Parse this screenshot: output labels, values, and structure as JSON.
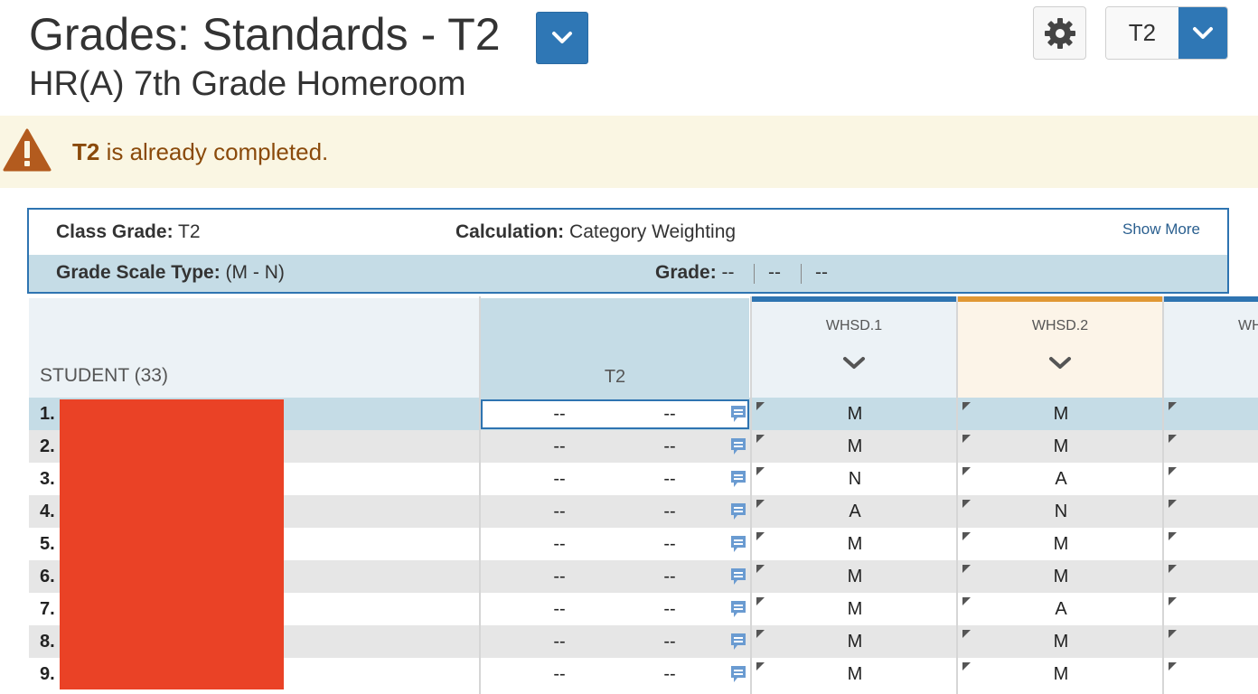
{
  "header": {
    "title": "Grades: Standards - T2",
    "subtitle": "HR(A) 7th Grade Homeroom",
    "term_value": "T2"
  },
  "alert": {
    "term": "T2",
    "message": " is already completed."
  },
  "summary": {
    "class_grade_label": "Class Grade:",
    "class_grade_value": "T2",
    "calculation_label": "Calculation:",
    "calculation_value": "Category Weighting",
    "show_more": "Show More",
    "grade_scale_label": "Grade Scale Type:",
    "grade_scale_value": "(M - N)",
    "grade_label": "Grade:",
    "grade_values": [
      "--",
      "--",
      "--"
    ]
  },
  "table": {
    "student_header": "STUDENT (33)",
    "term_header": "T2",
    "standards": [
      "WHSD.1",
      "WHSD.2",
      "WH"
    ],
    "rows": [
      {
        "num": "1.",
        "c1": "--",
        "c2": "--",
        "g1": "M",
        "g2": "M"
      },
      {
        "num": "2.",
        "c1": "--",
        "c2": "--",
        "g1": "M",
        "g2": "M"
      },
      {
        "num": "3.",
        "c1": "--",
        "c2": "--",
        "g1": "N",
        "g2": "A"
      },
      {
        "num": "4.",
        "c1": "--",
        "c2": "--",
        "g1": "A",
        "g2": "N"
      },
      {
        "num": "5.",
        "c1": "--",
        "c2": "--",
        "g1": "M",
        "g2": "M"
      },
      {
        "num": "6.",
        "c1": "--",
        "c2": "--",
        "g1": "M",
        "g2": "M"
      },
      {
        "num": "7.",
        "c1": "--",
        "c2": "--",
        "g1": "M",
        "g2": "A"
      },
      {
        "num": "8.",
        "c1": "--",
        "c2": "--",
        "g1": "M",
        "g2": "M"
      },
      {
        "num": "9.",
        "c1": "--",
        "c2": "--",
        "g1": "M",
        "g2": "M"
      }
    ]
  },
  "colors": {
    "accent_blue": "#2f77b5",
    "selected_row": "#c5dce6",
    "alt_row": "#e6e6e6",
    "alert_bg": "#faf6e3",
    "alert_text": "#8a4a0b",
    "standard_orange": "#e19834",
    "redaction": "#ea4226"
  }
}
